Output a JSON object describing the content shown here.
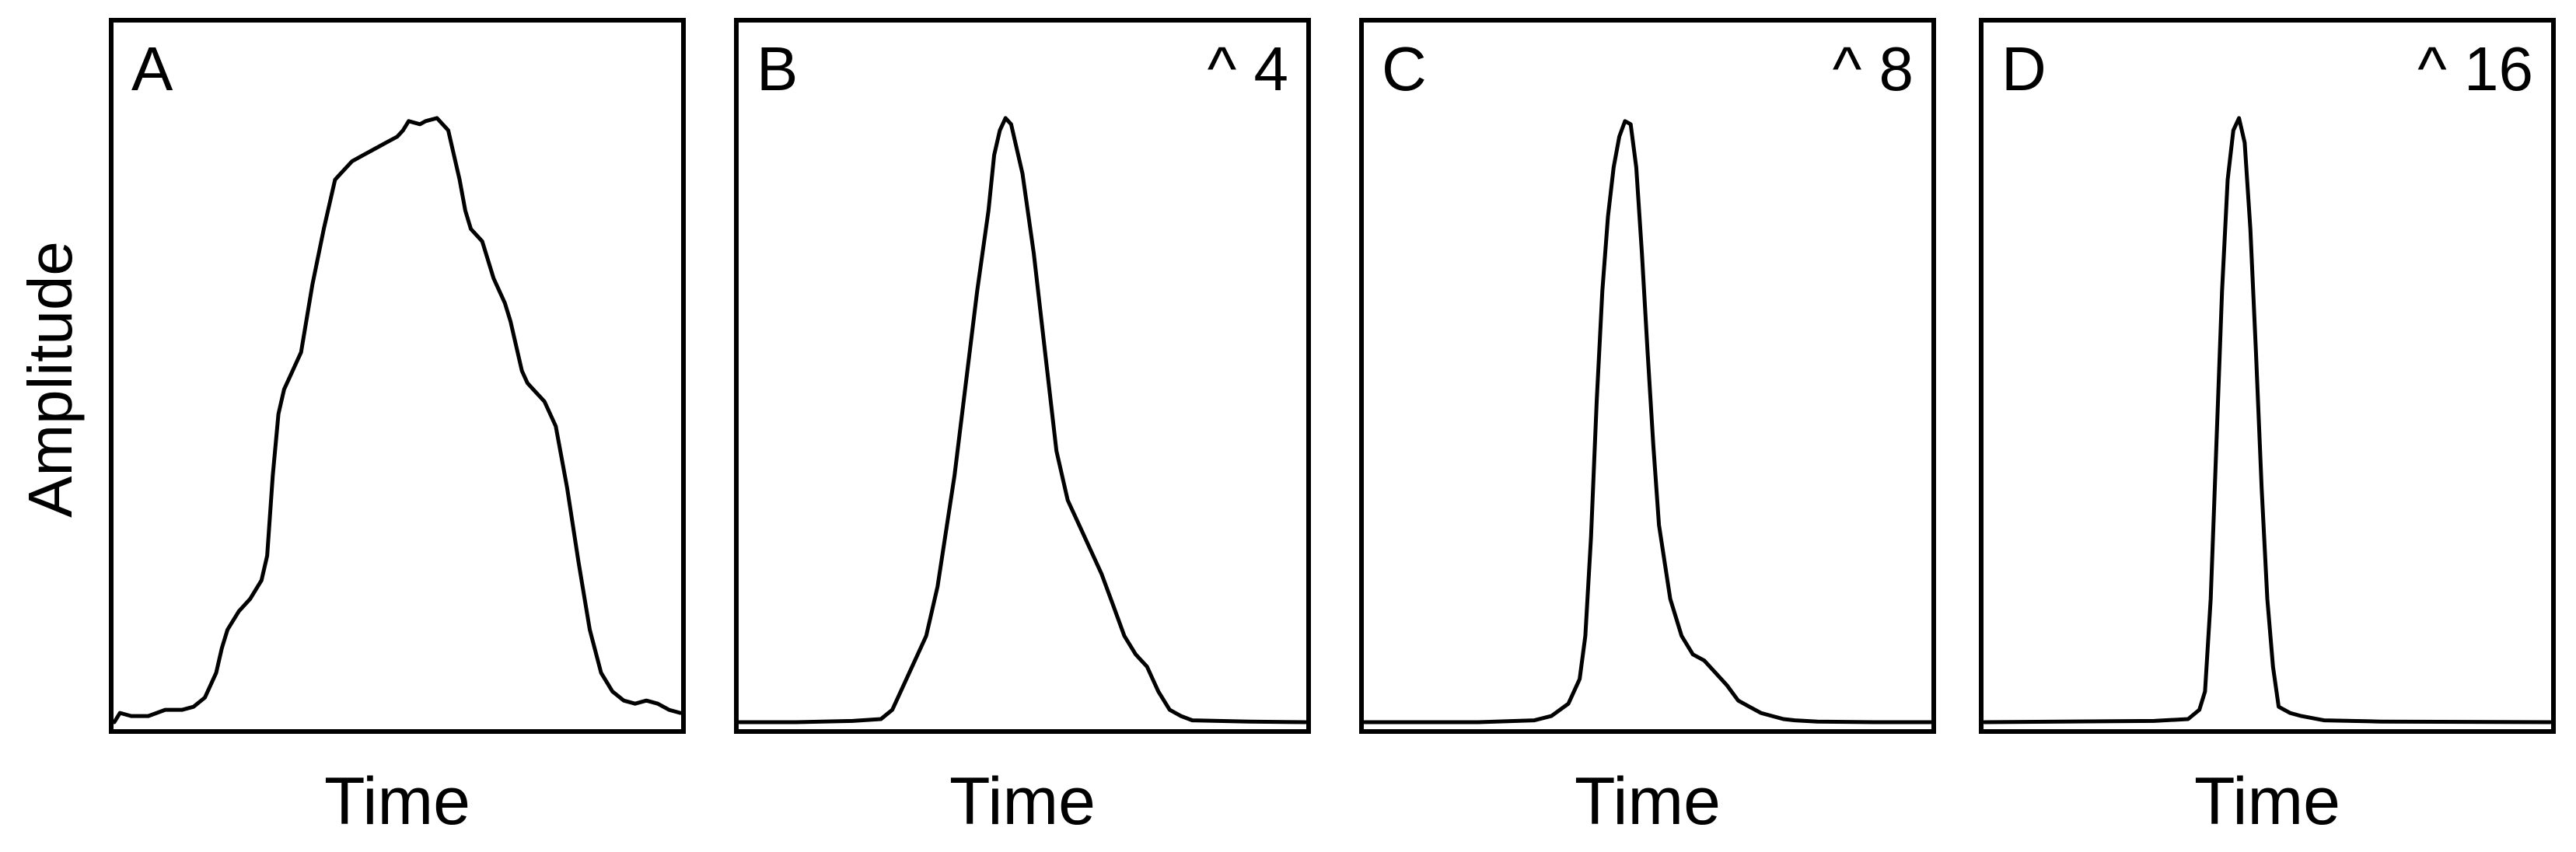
{
  "ylabel": "Amplitude",
  "colors": {
    "line": "#000000",
    "background": "#ffffff"
  },
  "chart_data": [
    {
      "type": "line",
      "panel_label": "A",
      "exponent_label": "",
      "xlabel": "Time",
      "ylabel": "Amplitude",
      "xlim": [
        0,
        1
      ],
      "ylim": [
        0,
        1
      ],
      "series": [
        {
          "x": [
            0,
            0.01,
            0.03,
            0.06,
            0.09,
            0.12,
            0.14,
            0.16,
            0.18,
            0.19,
            0.2,
            0.22,
            0.24,
            0.26,
            0.27,
            0.28,
            0.29,
            0.3,
            0.31,
            0.33,
            0.35,
            0.37,
            0.39,
            0.4,
            0.41,
            0.42,
            0.44,
            0.46,
            0.48,
            0.5,
            0.51,
            0.52,
            0.54,
            0.55,
            0.57,
            0.59,
            0.6,
            0.61,
            0.62,
            0.63,
            0.65,
            0.67,
            0.69,
            0.7,
            0.71,
            0.72,
            0.73,
            0.74,
            0.76,
            0.78,
            0.79,
            0.8,
            0.82,
            0.84,
            0.86,
            0.88,
            0.9,
            0.92,
            0.94,
            0.96,
            0.98,
            1
          ],
          "y": [
            0,
            0.015,
            0.01,
            0.01,
            0.02,
            0.02,
            0.025,
            0.04,
            0.08,
            0.12,
            0.15,
            0.18,
            0.2,
            0.23,
            0.27,
            0.4,
            0.5,
            0.54,
            0.56,
            0.6,
            0.71,
            0.8,
            0.88,
            0.89,
            0.9,
            0.91,
            0.92,
            0.93,
            0.94,
            0.95,
            0.96,
            0.975,
            0.97,
            0.975,
            0.98,
            0.96,
            0.92,
            0.88,
            0.83,
            0.8,
            0.78,
            0.72,
            0.68,
            0.65,
            0.61,
            0.57,
            0.55,
            0.54,
            0.52,
            0.48,
            0.43,
            0.38,
            0.26,
            0.15,
            0.08,
            0.05,
            0.035,
            0.03,
            0.035,
            0.03,
            0.02,
            0.015
          ]
        }
      ]
    },
    {
      "type": "line",
      "panel_label": "B",
      "exponent_label": "^ 4",
      "xlabel": "Time",
      "ylabel": "Amplitude",
      "xlim": [
        0,
        1
      ],
      "ylim": [
        0,
        1
      ],
      "series": [
        {
          "x": [
            0,
            0.1,
            0.2,
            0.25,
            0.27,
            0.3,
            0.33,
            0.35,
            0.38,
            0.4,
            0.42,
            0.44,
            0.45,
            0.46,
            0.47,
            0.48,
            0.5,
            0.52,
            0.54,
            0.56,
            0.58,
            0.6,
            0.62,
            0.64,
            0.66,
            0.68,
            0.7,
            0.72,
            0.74,
            0.76,
            0.78,
            0.8,
            0.9,
            1
          ],
          "y": [
            0,
            0,
            0.002,
            0.005,
            0.02,
            0.08,
            0.14,
            0.22,
            0.4,
            0.55,
            0.7,
            0.83,
            0.92,
            0.96,
            0.98,
            0.97,
            0.89,
            0.76,
            0.6,
            0.44,
            0.36,
            0.32,
            0.28,
            0.24,
            0.19,
            0.14,
            0.11,
            0.09,
            0.05,
            0.02,
            0.01,
            0.003,
            0.001,
            0
          ]
        }
      ]
    },
    {
      "type": "line",
      "panel_label": "C",
      "exponent_label": "^ 8",
      "xlabel": "Time",
      "ylabel": "Amplitude",
      "xlim": [
        0,
        1
      ],
      "ylim": [
        0,
        1
      ],
      "series": [
        {
          "x": [
            0,
            0.2,
            0.3,
            0.33,
            0.36,
            0.38,
            0.39,
            0.4,
            0.41,
            0.42,
            0.43,
            0.44,
            0.45,
            0.46,
            0.47,
            0.48,
            0.49,
            0.5,
            0.51,
            0.52,
            0.54,
            0.56,
            0.58,
            0.6,
            0.62,
            0.64,
            0.66,
            0.68,
            0.7,
            0.72,
            0.74,
            0.76,
            0.8,
            0.9,
            1
          ],
          "y": [
            0,
            0,
            0.003,
            0.01,
            0.03,
            0.07,
            0.14,
            0.3,
            0.52,
            0.7,
            0.82,
            0.9,
            0.95,
            0.975,
            0.97,
            0.9,
            0.76,
            0.6,
            0.45,
            0.32,
            0.2,
            0.14,
            0.11,
            0.1,
            0.08,
            0.06,
            0.035,
            0.025,
            0.015,
            0.01,
            0.005,
            0.003,
            0.001,
            0,
            0
          ]
        }
      ]
    },
    {
      "type": "line",
      "panel_label": "D",
      "exponent_label": "^ 16",
      "xlabel": "Time",
      "ylabel": "Amplitude",
      "xlim": [
        0,
        1
      ],
      "ylim": [
        0,
        1
      ],
      "series": [
        {
          "x": [
            0,
            0.3,
            0.36,
            0.38,
            0.39,
            0.4,
            0.41,
            0.42,
            0.43,
            0.44,
            0.45,
            0.46,
            0.47,
            0.48,
            0.49,
            0.5,
            0.51,
            0.52,
            0.54,
            0.56,
            0.6,
            0.7,
            1
          ],
          "y": [
            0,
            0.002,
            0.005,
            0.02,
            0.05,
            0.2,
            0.45,
            0.7,
            0.88,
            0.96,
            0.98,
            0.94,
            0.8,
            0.6,
            0.38,
            0.2,
            0.09,
            0.025,
            0.015,
            0.01,
            0.003,
            0.001,
            0
          ]
        }
      ]
    }
  ]
}
